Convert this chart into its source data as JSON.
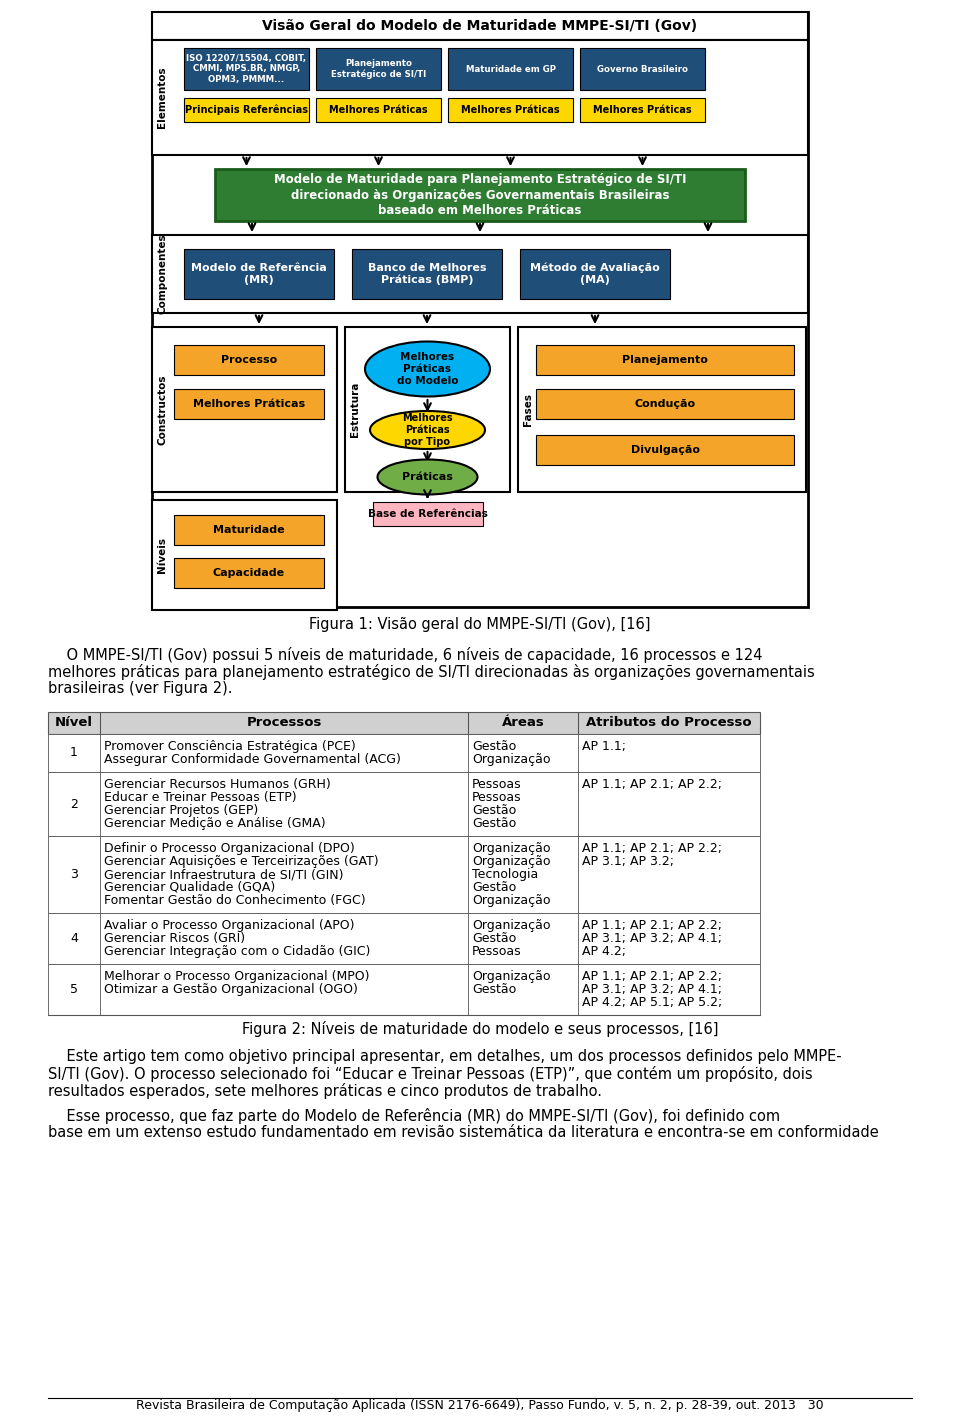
{
  "fig_width": 9.6,
  "fig_height": 14.26,
  "bg_color": "#ffffff",
  "figura1_caption": "Figura 1: Visão geral do MMPE-SI/TI (Gov), [16]",
  "figura2_caption": "Figura 2: Níveis de maturidade do modelo e seus processos, [16]",
  "footer": "Revista Brasileira de Computação Aplicada (ISSN 2176-6649), Passo Fundo, v. 5, n. 2, p. 28-39, out. 2013   30",
  "header_bg": "#d0d0d0",
  "border_color": "#555555",
  "font_size_caption": 10.5,
  "font_size_body": 10.5,
  "font_size_table": 9.0,
  "font_size_header": 9.5,
  "font_size_footer": 9.0,
  "diagram_title": "Visão Geral do Modelo de Maturidade MMPE-SI/TI (Gov)",
  "blue_color": "#1f4e79",
  "orange_color": "#f4a428",
  "yellow_color": "#ffd700",
  "green_dark": "#2e7d32",
  "blue_light": "#00b0f0",
  "green_light": "#70ad47",
  "pink_color": "#ffb6c1",
  "elem_labels": [
    "ISO 12207/15504, COBIT,\nCMMI, MPS.BR, NMGP,\nOPM3, PMMM...",
    "Planejamento\nEstratégico de SI/TI",
    "Maturidade em GP",
    "Governo Brasileiro"
  ],
  "elem_yellow": [
    "Principais Referências",
    "Melhores Práticas",
    "Melhores Práticas",
    "Melhores Práticas"
  ],
  "green_box_text": "Modelo de Maturidade para Planejamento Estratégico de SI/TI\ndirecionado às Organizações Governamentais Brasileiras\nbaseado em Melhores Práticas",
  "comp_labels": [
    "Modelo de Referência\n(MR)",
    "Banco de Melhores\nPráticas (BMP)",
    "Método de Avaliação\n(MA)"
  ],
  "table_rows": [
    {
      "nivel": "1",
      "processos": [
        "Promover Consciência Estratégica (PCE)",
        "Assegurar Conformidade Governamental (ACG)"
      ],
      "areas": [
        "Gestão",
        "Organização"
      ],
      "atributos": [
        "AP 1.1;"
      ]
    },
    {
      "nivel": "2",
      "processos": [
        "Gerenciar Recursos Humanos (GRH)",
        "Educar e Treinar Pessoas (ETP)",
        "Gerenciar Projetos (GEP)",
        "Gerenciar Medição e Análise (GMA)"
      ],
      "areas": [
        "Pessoas",
        "Pessoas",
        "Gestão",
        "Gestão"
      ],
      "atributos": [
        "AP 1.1; AP 2.1; AP 2.2;"
      ]
    },
    {
      "nivel": "3",
      "processos": [
        "Definir o Processo Organizacional (DPO)",
        "Gerenciar Aquisições e Terceirizações (GAT)",
        "Gerenciar Infraestrutura de SI/TI (GIN)",
        "Gerenciar Qualidade (GQA)",
        "Fomentar Gestão do Conhecimento (FGC)"
      ],
      "areas": [
        "Organização",
        "Organização",
        "Tecnologia",
        "Gestão",
        "Organização"
      ],
      "atributos": [
        "AP 1.1; AP 2.1; AP 2.2;",
        "AP 3.1; AP 3.2;"
      ]
    },
    {
      "nivel": "4",
      "processos": [
        "Avaliar o Processo Organizacional (APO)",
        "Gerenciar Riscos (GRI)",
        "Gerenciar Integração com o Cidadão (GIC)"
      ],
      "areas": [
        "Organização",
        "Gestão",
        "Pessoas"
      ],
      "atributos": [
        "AP 1.1; AP 2.1; AP 2.2;",
        "AP 3.1; AP 3.2; AP 4.1;",
        "AP 4.2;"
      ]
    },
    {
      "nivel": "5",
      "processos": [
        "Melhorar o Processo Organizacional (MPO)",
        "Otimizar a Gestão Organizacional (OGO)"
      ],
      "areas": [
        "Organização",
        "Gestão"
      ],
      "atributos": [
        "AP 1.1; AP 2.1; AP 2.2;",
        "AP 3.1; AP 3.2; AP 4.1;",
        "AP 4.2; AP 5.1; AP 5.2;"
      ]
    }
  ]
}
